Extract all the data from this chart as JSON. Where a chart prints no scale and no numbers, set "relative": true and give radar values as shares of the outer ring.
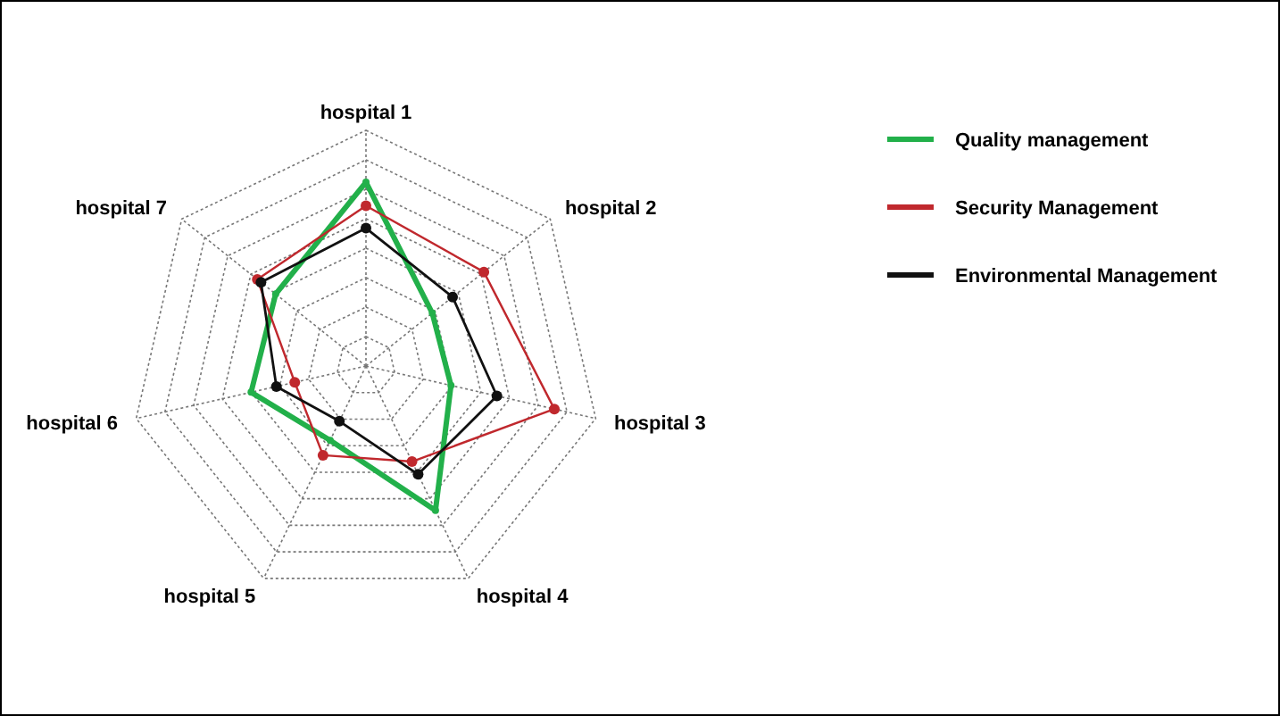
{
  "chart_data": {
    "type": "radar",
    "relative": true,
    "grid": true,
    "legend": "right",
    "marker": "circle",
    "categories": [
      "hospital 1",
      "hospital 2",
      "hospital 3",
      "hospital 4",
      "hospital 5",
      "hospital 6",
      "hospital 7"
    ],
    "series": [
      {
        "name": "Quality management",
        "color": "#22b04a",
        "values": [
          0.78,
          0.36,
          0.37,
          0.68,
          0.35,
          0.5,
          0.49
        ]
      },
      {
        "name": "Security Management",
        "color": "#c0282d",
        "values": [
          0.68,
          0.64,
          0.82,
          0.45,
          0.42,
          0.31,
          0.59
        ]
      },
      {
        "name": "Environmental Management",
        "color": "#111111",
        "values": [
          0.585,
          0.47,
          0.57,
          0.51,
          0.26,
          0.39,
          0.57
        ]
      }
    ]
  }
}
